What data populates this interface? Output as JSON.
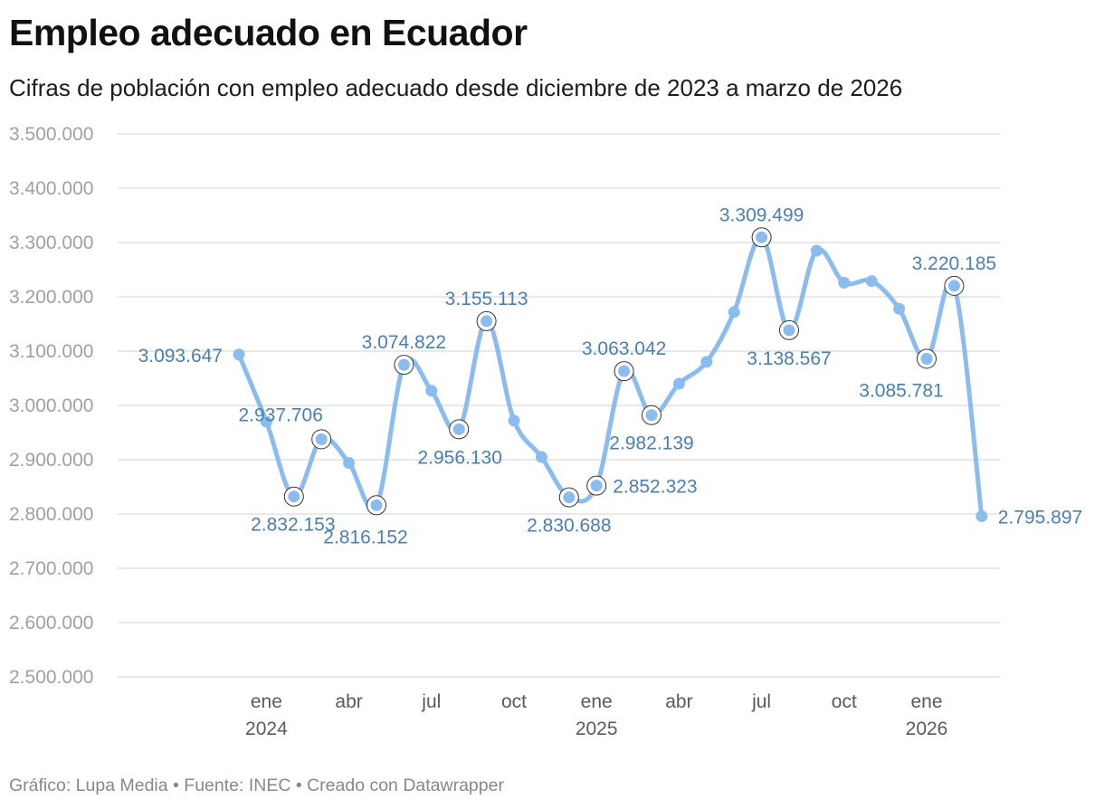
{
  "title": "Empleo adecuado en Ecuador",
  "subtitle": "Cifras de población con empleo adecuado desde diciembre de 2023 a marzo de 2026",
  "footer": {
    "chart_by": "Gráfico: Lupa Media",
    "source": "Fuente: INEC",
    "created_with": "Creado con Datawrapper",
    "separator": " • "
  },
  "colors": {
    "line": "#8bbcef",
    "label": "#4a7fb0",
    "grid": "#e0e0e0",
    "tick": "#a0a0a0",
    "xtick": "#5a5a5a"
  },
  "chart_data": {
    "type": "line",
    "title": "Empleo adecuado en Ecuador",
    "subtitle": "Cifras de población con empleo adecuado desde diciembre de 2023 a marzo de 2026",
    "xlabel": "",
    "ylabel": "",
    "ylim": [
      2500000,
      3500000
    ],
    "yticks": [
      2500000,
      2600000,
      2700000,
      2800000,
      2900000,
      3000000,
      3100000,
      3200000,
      3300000,
      3400000,
      3500000
    ],
    "ytick_labels": [
      "2.500.000",
      "2.600.000",
      "2.700.000",
      "2.800.000",
      "2.900.000",
      "3.000.000",
      "3.100.000",
      "3.200.000",
      "3.300.000",
      "3.400.000",
      "3.500.000"
    ],
    "xticks": [
      {
        "date": "2024-01",
        "label": "ene",
        "year": "2024"
      },
      {
        "date": "2024-04",
        "label": "abr",
        "year": ""
      },
      {
        "date": "2024-07",
        "label": "jul",
        "year": ""
      },
      {
        "date": "2024-10",
        "label": "oct",
        "year": ""
      },
      {
        "date": "2025-01",
        "label": "ene",
        "year": "2025"
      },
      {
        "date": "2025-04",
        "label": "abr",
        "year": ""
      },
      {
        "date": "2025-07",
        "label": "jul",
        "year": ""
      },
      {
        "date": "2025-10",
        "label": "oct",
        "year": ""
      },
      {
        "date": "2026-01",
        "label": "ene",
        "year": "2026"
      }
    ],
    "grid": true,
    "legend": "none",
    "series": [
      {
        "points": [
          {
            "date": "2023-12",
            "value": 3093647,
            "label": "3.093.647",
            "highlight": false,
            "label_pos": "left"
          },
          {
            "date": "2024-01",
            "value": 2970000
          },
          {
            "date": "2024-02",
            "value": 2832153,
            "label": "2.832.153",
            "highlight": true,
            "label_pos": "below"
          },
          {
            "date": "2024-03",
            "value": 2937706,
            "label": "2.937.706",
            "highlight": true,
            "label_pos": "above-left"
          },
          {
            "date": "2024-04",
            "value": 2894000
          },
          {
            "date": "2024-05",
            "value": 2816152,
            "label": "2.816.152",
            "highlight": true,
            "label_pos": "below-left"
          },
          {
            "date": "2024-06",
            "value": 3074822,
            "label": "3.074.822",
            "highlight": true,
            "label_pos": "above"
          },
          {
            "date": "2024-07",
            "value": 3027000
          },
          {
            "date": "2024-08",
            "value": 2956130,
            "label": "2.956.130",
            "highlight": true,
            "label_pos": "below"
          },
          {
            "date": "2024-09",
            "value": 3155113,
            "label": "3.155.113",
            "highlight": true,
            "label_pos": "above"
          },
          {
            "date": "2024-10",
            "value": 2972000
          },
          {
            "date": "2024-11",
            "value": 2905000
          },
          {
            "date": "2024-12",
            "value": 2830688,
            "label": "2.830.688",
            "highlight": true,
            "label_pos": "below"
          },
          {
            "date": "2025-01",
            "value": 2852323,
            "label": "2.852.323",
            "highlight": true,
            "label_pos": "right"
          },
          {
            "date": "2025-02",
            "value": 3063042,
            "label": "3.063.042",
            "highlight": true,
            "label_pos": "above"
          },
          {
            "date": "2025-03",
            "value": 2982139,
            "label": "2.982.139",
            "highlight": true,
            "label_pos": "below"
          },
          {
            "date": "2025-04",
            "value": 3040000
          },
          {
            "date": "2025-05",
            "value": 3080000
          },
          {
            "date": "2025-06",
            "value": 3172000
          },
          {
            "date": "2025-07",
            "value": 3309499,
            "label": "3.309.499",
            "highlight": true,
            "label_pos": "above"
          },
          {
            "date": "2025-08",
            "value": 3138567,
            "label": "3.138.567",
            "highlight": true,
            "label_pos": "below"
          },
          {
            "date": "2025-09",
            "value": 3285000
          },
          {
            "date": "2025-10",
            "value": 3226000
          },
          {
            "date": "2025-11",
            "value": 3229000
          },
          {
            "date": "2025-12",
            "value": 3178000
          },
          {
            "date": "2026-01",
            "value": 3085781,
            "label": "3.085.781",
            "highlight": true,
            "label_pos": "below-left"
          },
          {
            "date": "2026-02",
            "value": 3220185,
            "label": "3.220.185",
            "highlight": true,
            "label_pos": "above"
          },
          {
            "date": "2026-03",
            "value": 2795897,
            "label": "2.795.897",
            "highlight": false,
            "label_pos": "right"
          }
        ]
      }
    ]
  }
}
